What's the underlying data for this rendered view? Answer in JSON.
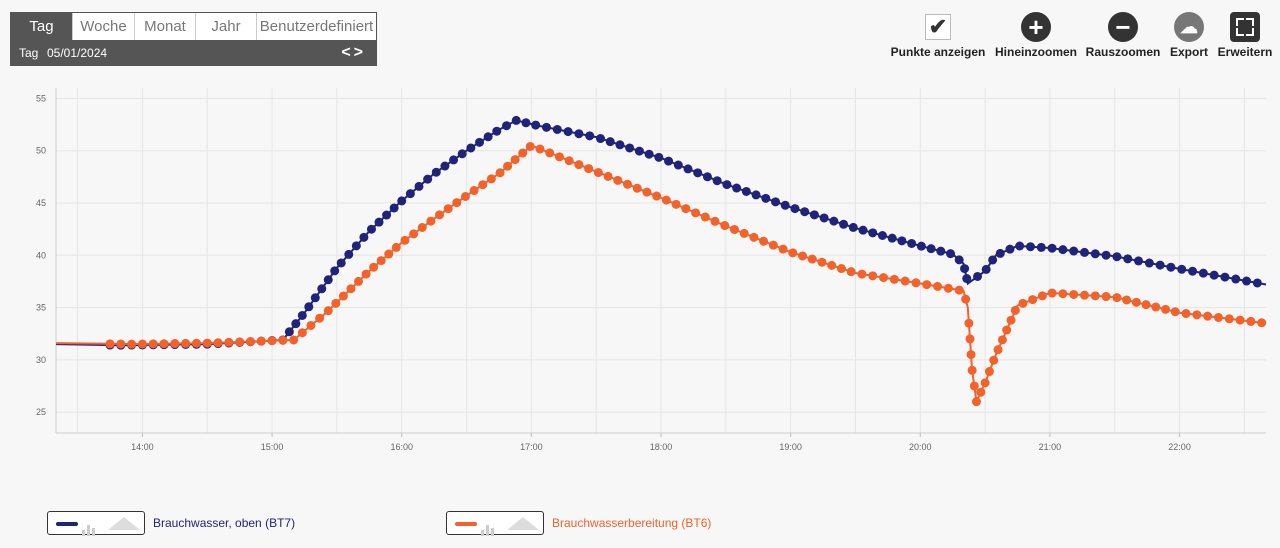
{
  "range": {
    "tabs": [
      "Tag",
      "Woche",
      "Monat",
      "Jahr",
      "Benutzerdefiniert"
    ],
    "active": 0,
    "sub_label": "Tag",
    "date": "05/01/2024",
    "arrows": "< >"
  },
  "toolbar": {
    "show_points": "Punkte anzeigen",
    "zoom_in": "Hineinzoomen",
    "zoom_out": "Rauszoomen",
    "export": "Export",
    "expand": "Erweitern"
  },
  "colors": {
    "series1": "#1f237a",
    "series2": "#f2622a",
    "grid": "#e5e5e5",
    "background": "#f7f7f7"
  },
  "icons": [
    "check-icon",
    "plus-icon",
    "minus-icon",
    "cloud-download-icon",
    "expand-icon",
    "chevron-left-icon",
    "chevron-right-icon"
  ],
  "chart_data": {
    "type": "line",
    "x_ticks": [
      "14:00",
      "15:00",
      "16:00",
      "17:00",
      "18:00",
      "19:00",
      "20:00",
      "21:00",
      "22:00"
    ],
    "y_ticks": [
      25,
      30,
      35,
      40,
      45,
      50,
      55
    ],
    "xlim": [
      "13:20",
      "22:40"
    ],
    "ylim": [
      23,
      56
    ],
    "grid": true,
    "show_points": true,
    "legend_position": "bottom",
    "series": [
      {
        "name": "Brauchwasser, oben (BT7)",
        "color": "#1f237a",
        "points": [
          [
            "13:20",
            31.5
          ],
          [
            "13:50",
            31.4
          ],
          [
            "14:30",
            31.5
          ],
          [
            "15:05",
            31.9
          ],
          [
            "15:15",
            34.5
          ],
          [
            "15:30",
            38.8
          ],
          [
            "15:45",
            42.3
          ],
          [
            "16:00",
            45.2
          ],
          [
            "16:15",
            47.8
          ],
          [
            "16:30",
            50.0
          ],
          [
            "16:45",
            52.0
          ],
          [
            "16:53",
            52.9
          ],
          [
            "17:03",
            52.4
          ],
          [
            "17:30",
            51.3
          ],
          [
            "18:00",
            49.3
          ],
          [
            "18:30",
            46.8
          ],
          [
            "19:00",
            44.6
          ],
          [
            "19:30",
            42.6
          ],
          [
            "20:00",
            40.9
          ],
          [
            "20:15",
            40.1
          ],
          [
            "20:20",
            39.2
          ],
          [
            "20:22",
            37.3
          ],
          [
            "20:30",
            38.5
          ],
          [
            "20:35",
            40.0
          ],
          [
            "20:45",
            40.9
          ],
          [
            "21:00",
            40.7
          ],
          [
            "21:30",
            39.9
          ],
          [
            "22:00",
            38.7
          ],
          [
            "22:40",
            37.2
          ]
        ]
      },
      {
        "name": "Brauchwasserbereitung (BT6)",
        "color": "#f2622a",
        "points": [
          [
            "13:20",
            31.6
          ],
          [
            "13:55",
            31.5
          ],
          [
            "14:30",
            31.6
          ],
          [
            "15:10",
            31.9
          ],
          [
            "15:25",
            34.5
          ],
          [
            "15:45",
            38.5
          ],
          [
            "16:00",
            41.2
          ],
          [
            "16:15",
            43.5
          ],
          [
            "16:30",
            45.7
          ],
          [
            "16:45",
            47.8
          ],
          [
            "17:00",
            50.5
          ],
          [
            "17:30",
            48.0
          ],
          [
            "18:00",
            45.5
          ],
          [
            "18:30",
            42.8
          ],
          [
            "19:00",
            40.3
          ],
          [
            "19:30",
            38.3
          ],
          [
            "20:00",
            37.3
          ],
          [
            "20:20",
            36.6
          ],
          [
            "20:22",
            35.0
          ],
          [
            "20:24",
            29.0
          ],
          [
            "20:26",
            26.0
          ],
          [
            "20:30",
            27.8
          ],
          [
            "20:35",
            30.5
          ],
          [
            "20:45",
            35.2
          ],
          [
            "21:00",
            36.4
          ],
          [
            "21:30",
            36.0
          ],
          [
            "22:00",
            34.5
          ],
          [
            "22:40",
            33.5
          ]
        ]
      }
    ]
  }
}
